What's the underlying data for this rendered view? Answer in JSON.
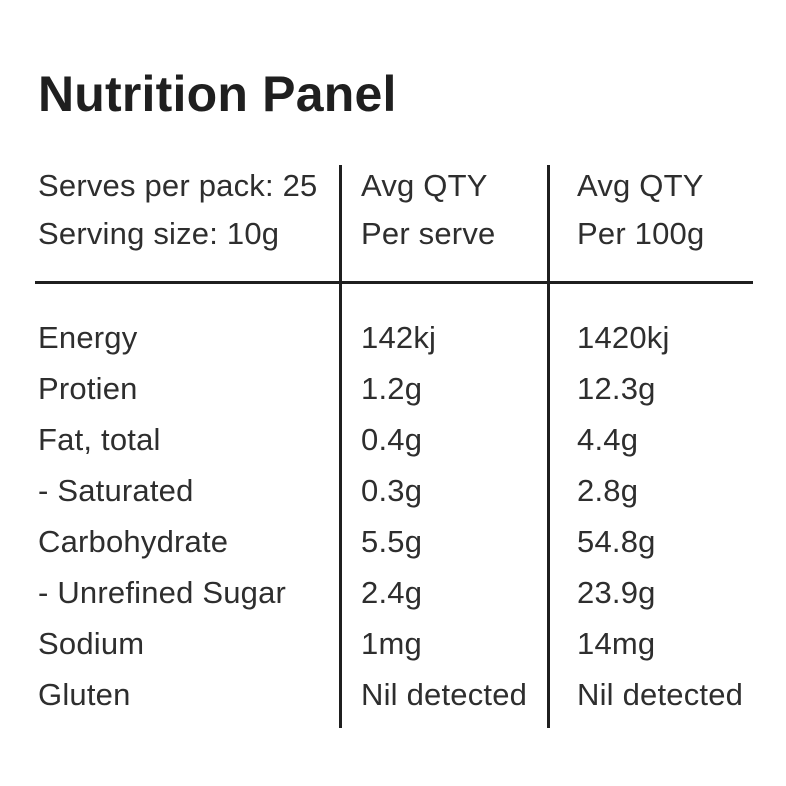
{
  "page": {
    "title": "Nutrition Panel",
    "background_color": "#ffffff",
    "text_color": "#2e2e2e",
    "line_color": "#1f1f1f"
  },
  "table": {
    "columns": [
      {
        "header_line1": "Serves per pack: 25",
        "header_line2": "Serving size: 10g"
      },
      {
        "header_line1": "Avg QTY",
        "header_line2": "Per serve"
      },
      {
        "header_line1": "Avg QTY",
        "header_line2": "Per 100g"
      }
    ],
    "rows": [
      {
        "label": "Energy",
        "per_serve": "142kj",
        "per_100g": "1420kj"
      },
      {
        "label": "Protien",
        "per_serve": "1.2g",
        "per_100g": "12.3g"
      },
      {
        "label": "Fat, total",
        "per_serve": "0.4g",
        "per_100g": "4.4g"
      },
      {
        "label": "- Saturated",
        "per_serve": "0.3g",
        "per_100g": "2.8g"
      },
      {
        "label": "Carbohydrate",
        "per_serve": "5.5g",
        "per_100g": "54.8g"
      },
      {
        "label": "- Unrefined Sugar",
        "per_serve": "2.4g",
        "per_100g": "23.9g"
      },
      {
        "label": "Sodium",
        "per_serve": "1mg",
        "per_100g": "14mg"
      },
      {
        "label": "Gluten",
        "per_serve": "Nil detected",
        "per_100g": "Nil detected"
      }
    ]
  }
}
